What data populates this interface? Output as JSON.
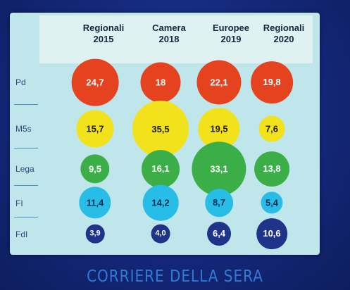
{
  "chart_data": {
    "type": "bubble-table",
    "columns": [
      "Regionali 2015",
      "Camera 2018",
      "Europee 2019",
      "Regionali 2020"
    ],
    "rows": [
      {
        "name": "Pd",
        "color": "#e5421f",
        "text_color": "#ffffff",
        "values": [
          24.7,
          18,
          22.1,
          19.8
        ],
        "labels": [
          "24,7",
          "18",
          "22,1",
          "19,8"
        ]
      },
      {
        "name": "M5s",
        "color": "#f2e21c",
        "text_color": "#1b1b1b",
        "values": [
          15.7,
          35.5,
          19.5,
          7.6
        ],
        "labels": [
          "15,7",
          "35,5",
          "19,5",
          "7,6"
        ]
      },
      {
        "name": "Lega",
        "color": "#3cae48",
        "text_color": "#ffffff",
        "values": [
          9.5,
          16.1,
          33.1,
          13.8
        ],
        "labels": [
          "9,5",
          "16,1",
          "33,1",
          "13,8"
        ]
      },
      {
        "name": "FI",
        "color": "#28bde6",
        "text_color": "#0e2a55",
        "values": [
          11.4,
          14.2,
          8.7,
          5.4
        ],
        "labels": [
          "11,4",
          "14,2",
          "8,7",
          "5,4"
        ]
      },
      {
        "name": "FdI",
        "color": "#1f3488",
        "text_color": "#ffffff",
        "values": [
          3.9,
          4.0,
          6.4,
          10.6
        ],
        "labels": [
          "3,9",
          "4,0",
          "6,4",
          "10,6"
        ]
      }
    ]
  },
  "header": {
    "col1_line1": "Regionali",
    "col1_line2": "2015",
    "col2_line1": "Camera",
    "col2_line2": "2018",
    "col3_line1": "Europee",
    "col3_line2": "2019",
    "col4_line1": "Regionali",
    "col4_line2": "2020"
  },
  "footer": {
    "logo_text": "CORRIERE DELLA SERA"
  }
}
